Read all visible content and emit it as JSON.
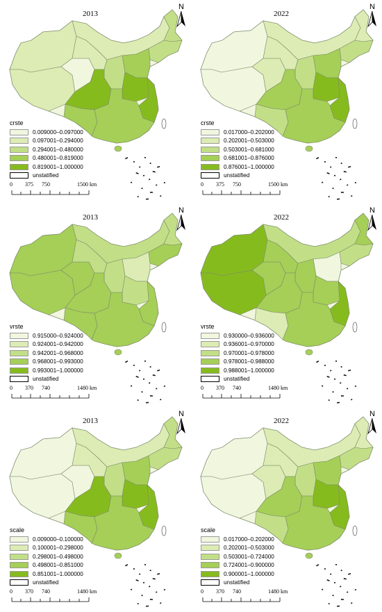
{
  "panels": [
    {
      "year": "2013",
      "legend_title": "crste",
      "legend": [
        "0.009000–0.097000",
        "0.097001–0.294000",
        "0.294001–0.480000",
        "0.480001–0.819000",
        "0.819001–1.000000",
        "unstatified"
      ],
      "scale": {
        "s0": "0",
        "s1": "375",
        "s2": "750",
        "s3": "1500 km"
      },
      "north": "N"
    },
    {
      "year": "2022",
      "legend_title": "crste",
      "legend": [
        "0.017000–0.202000",
        "0.202001–0.503000",
        "0.503001–0.681000",
        "0.681001–0.876000",
        "0.876001–1.000000",
        "unstatified"
      ],
      "scale": {
        "s0": "0",
        "s1": "375",
        "s2": "750",
        "s3": "1500 km"
      },
      "north": "N"
    },
    {
      "year": "2013",
      "legend_title": "vrste",
      "legend": [
        "0.915000–0.924000",
        "0.924001–0.942000",
        "0.942001–0.968000",
        "0.968001–0.993000",
        "0.993001–1.000000",
        "unstatified"
      ],
      "scale": {
        "s0": "0",
        "s1": "370",
        "s2": "740",
        "s3": "1480 km"
      },
      "north": "N"
    },
    {
      "year": "2022",
      "legend_title": "vrste",
      "legend": [
        "0.930000–0.936000",
        "0.936001–0.970000",
        "0.970001–0.978000",
        "0.978001–0.988000",
        "0.988001–1.000000",
        "unstatified"
      ],
      "scale": {
        "s0": "0",
        "s1": "370",
        "s2": "740",
        "s3": "1480 km"
      },
      "north": "N"
    },
    {
      "year": "2013",
      "legend_title": "scale",
      "legend": [
        "0.009000–0.100000",
        "0.100001–0.298000",
        "0.298001–0.498000",
        "0.498001–0.851000",
        "0.851001–1.000000",
        "unstatified"
      ],
      "scale": {
        "s0": "0",
        "s1": "370",
        "s2": "740",
        "s3": "1480 km"
      },
      "north": "N"
    },
    {
      "year": "2022",
      "legend_title": "scale",
      "legend": [
        "0.017000–0.202000",
        "0.202001–0.503000",
        "0.503001–0.724000",
        "0.724001–0.900000",
        "0.900001–1.000000",
        "unstatified"
      ],
      "scale": {
        "s0": "0",
        "s1": "370",
        "s2": "740",
        "s3": "1480 km"
      },
      "north": "N"
    }
  ],
  "colors": {
    "class1": "#f1f7df",
    "class2": "#dcecb4",
    "class3": "#c2df87",
    "class4": "#a5cf57",
    "class5": "#86bb1e",
    "unstatified": "#ffffff",
    "border": "#7d8a6a"
  }
}
